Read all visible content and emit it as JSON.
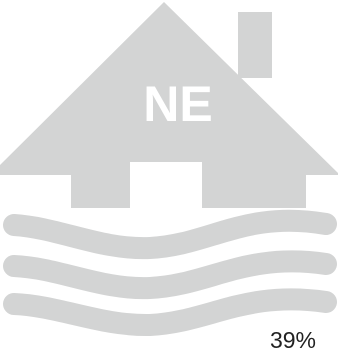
{
  "house": {
    "label": "NE"
  },
  "stat": {
    "percent_text": "39%"
  },
  "colors": {
    "house": "#d3d4d4",
    "waves": "#d3d4d4",
    "label": "#ffffff",
    "percent_text": "#222222",
    "background": "#ffffff"
  },
  "icons": {
    "house": "house-icon",
    "waves": "flood-waves-icon"
  }
}
